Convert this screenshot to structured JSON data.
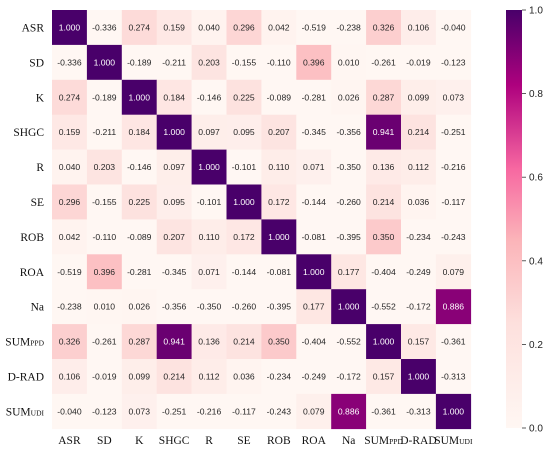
{
  "chart_data": {
    "type": "heatmap",
    "title": "",
    "xlabel": "",
    "ylabel": "",
    "labels": [
      {
        "main": "ASR",
        "sub": ""
      },
      {
        "main": "SD",
        "sub": ""
      },
      {
        "main": "K",
        "sub": ""
      },
      {
        "main": "SHGC",
        "sub": ""
      },
      {
        "main": "R",
        "sub": ""
      },
      {
        "main": "SE",
        "sub": ""
      },
      {
        "main": "ROB",
        "sub": ""
      },
      {
        "main": "ROA",
        "sub": ""
      },
      {
        "main": "Na",
        "sub": ""
      },
      {
        "main": "SUM",
        "sub": "PPD"
      },
      {
        "main": "D-RAD",
        "sub": ""
      },
      {
        "main": "SUM",
        "sub": "UDI"
      }
    ],
    "matrix": [
      [
        1.0,
        -0.336,
        0.274,
        0.159,
        0.04,
        0.296,
        0.042,
        -0.519,
        -0.238,
        0.326,
        0.106,
        -0.04
      ],
      [
        -0.336,
        1.0,
        -0.189,
        -0.211,
        0.203,
        -0.155,
        -0.11,
        0.396,
        0.01,
        -0.261,
        -0.019,
        -0.123
      ],
      [
        0.274,
        -0.189,
        1.0,
        0.184,
        -0.146,
        0.225,
        -0.089,
        -0.281,
        0.026,
        0.287,
        0.099,
        0.073
      ],
      [
        0.159,
        -0.211,
        0.184,
        1.0,
        0.097,
        0.095,
        0.207,
        -0.345,
        -0.356,
        0.941,
        0.214,
        -0.251
      ],
      [
        0.04,
        0.203,
        -0.146,
        0.097,
        1.0,
        -0.101,
        0.11,
        0.071,
        -0.35,
        0.136,
        0.112,
        -0.216
      ],
      [
        0.296,
        -0.155,
        0.225,
        0.095,
        -0.101,
        1.0,
        0.172,
        -0.144,
        -0.26,
        0.214,
        0.036,
        -0.117
      ],
      [
        0.042,
        -0.11,
        -0.089,
        0.207,
        0.11,
        0.172,
        1.0,
        -0.081,
        -0.395,
        0.35,
        -0.234,
        -0.243
      ],
      [
        -0.519,
        0.396,
        -0.281,
        -0.345,
        0.071,
        -0.144,
        -0.081,
        1.0,
        0.177,
        -0.404,
        -0.249,
        0.079
      ],
      [
        -0.238,
        0.01,
        0.026,
        -0.356,
        -0.35,
        -0.26,
        -0.395,
        0.177,
        1.0,
        -0.552,
        -0.172,
        0.886
      ],
      [
        0.326,
        -0.261,
        0.287,
        0.941,
        0.136,
        0.214,
        0.35,
        -0.404,
        -0.552,
        1.0,
        0.157,
        -0.361
      ],
      [
        0.106,
        -0.019,
        0.099,
        0.214,
        0.112,
        0.036,
        -0.234,
        -0.249,
        -0.172,
        0.157,
        1.0,
        -0.313
      ],
      [
        -0.04,
        -0.123,
        0.073,
        -0.251,
        -0.216,
        -0.117,
        -0.243,
        0.079,
        0.886,
        -0.361,
        -0.313,
        1.0
      ]
    ],
    "colorbar": {
      "range": [
        0.0,
        1.0
      ],
      "ticks": [
        "0.0",
        "0.2",
        "0.4",
        "0.6",
        "0.8",
        "1.0"
      ],
      "colors": {
        "low": "#fff7f3",
        "mid1": "#fbb4b9",
        "mid2": "#f768a1",
        "mid3": "#ae017e",
        "high": "#49006a"
      }
    },
    "grid": false,
    "legend": "right"
  }
}
